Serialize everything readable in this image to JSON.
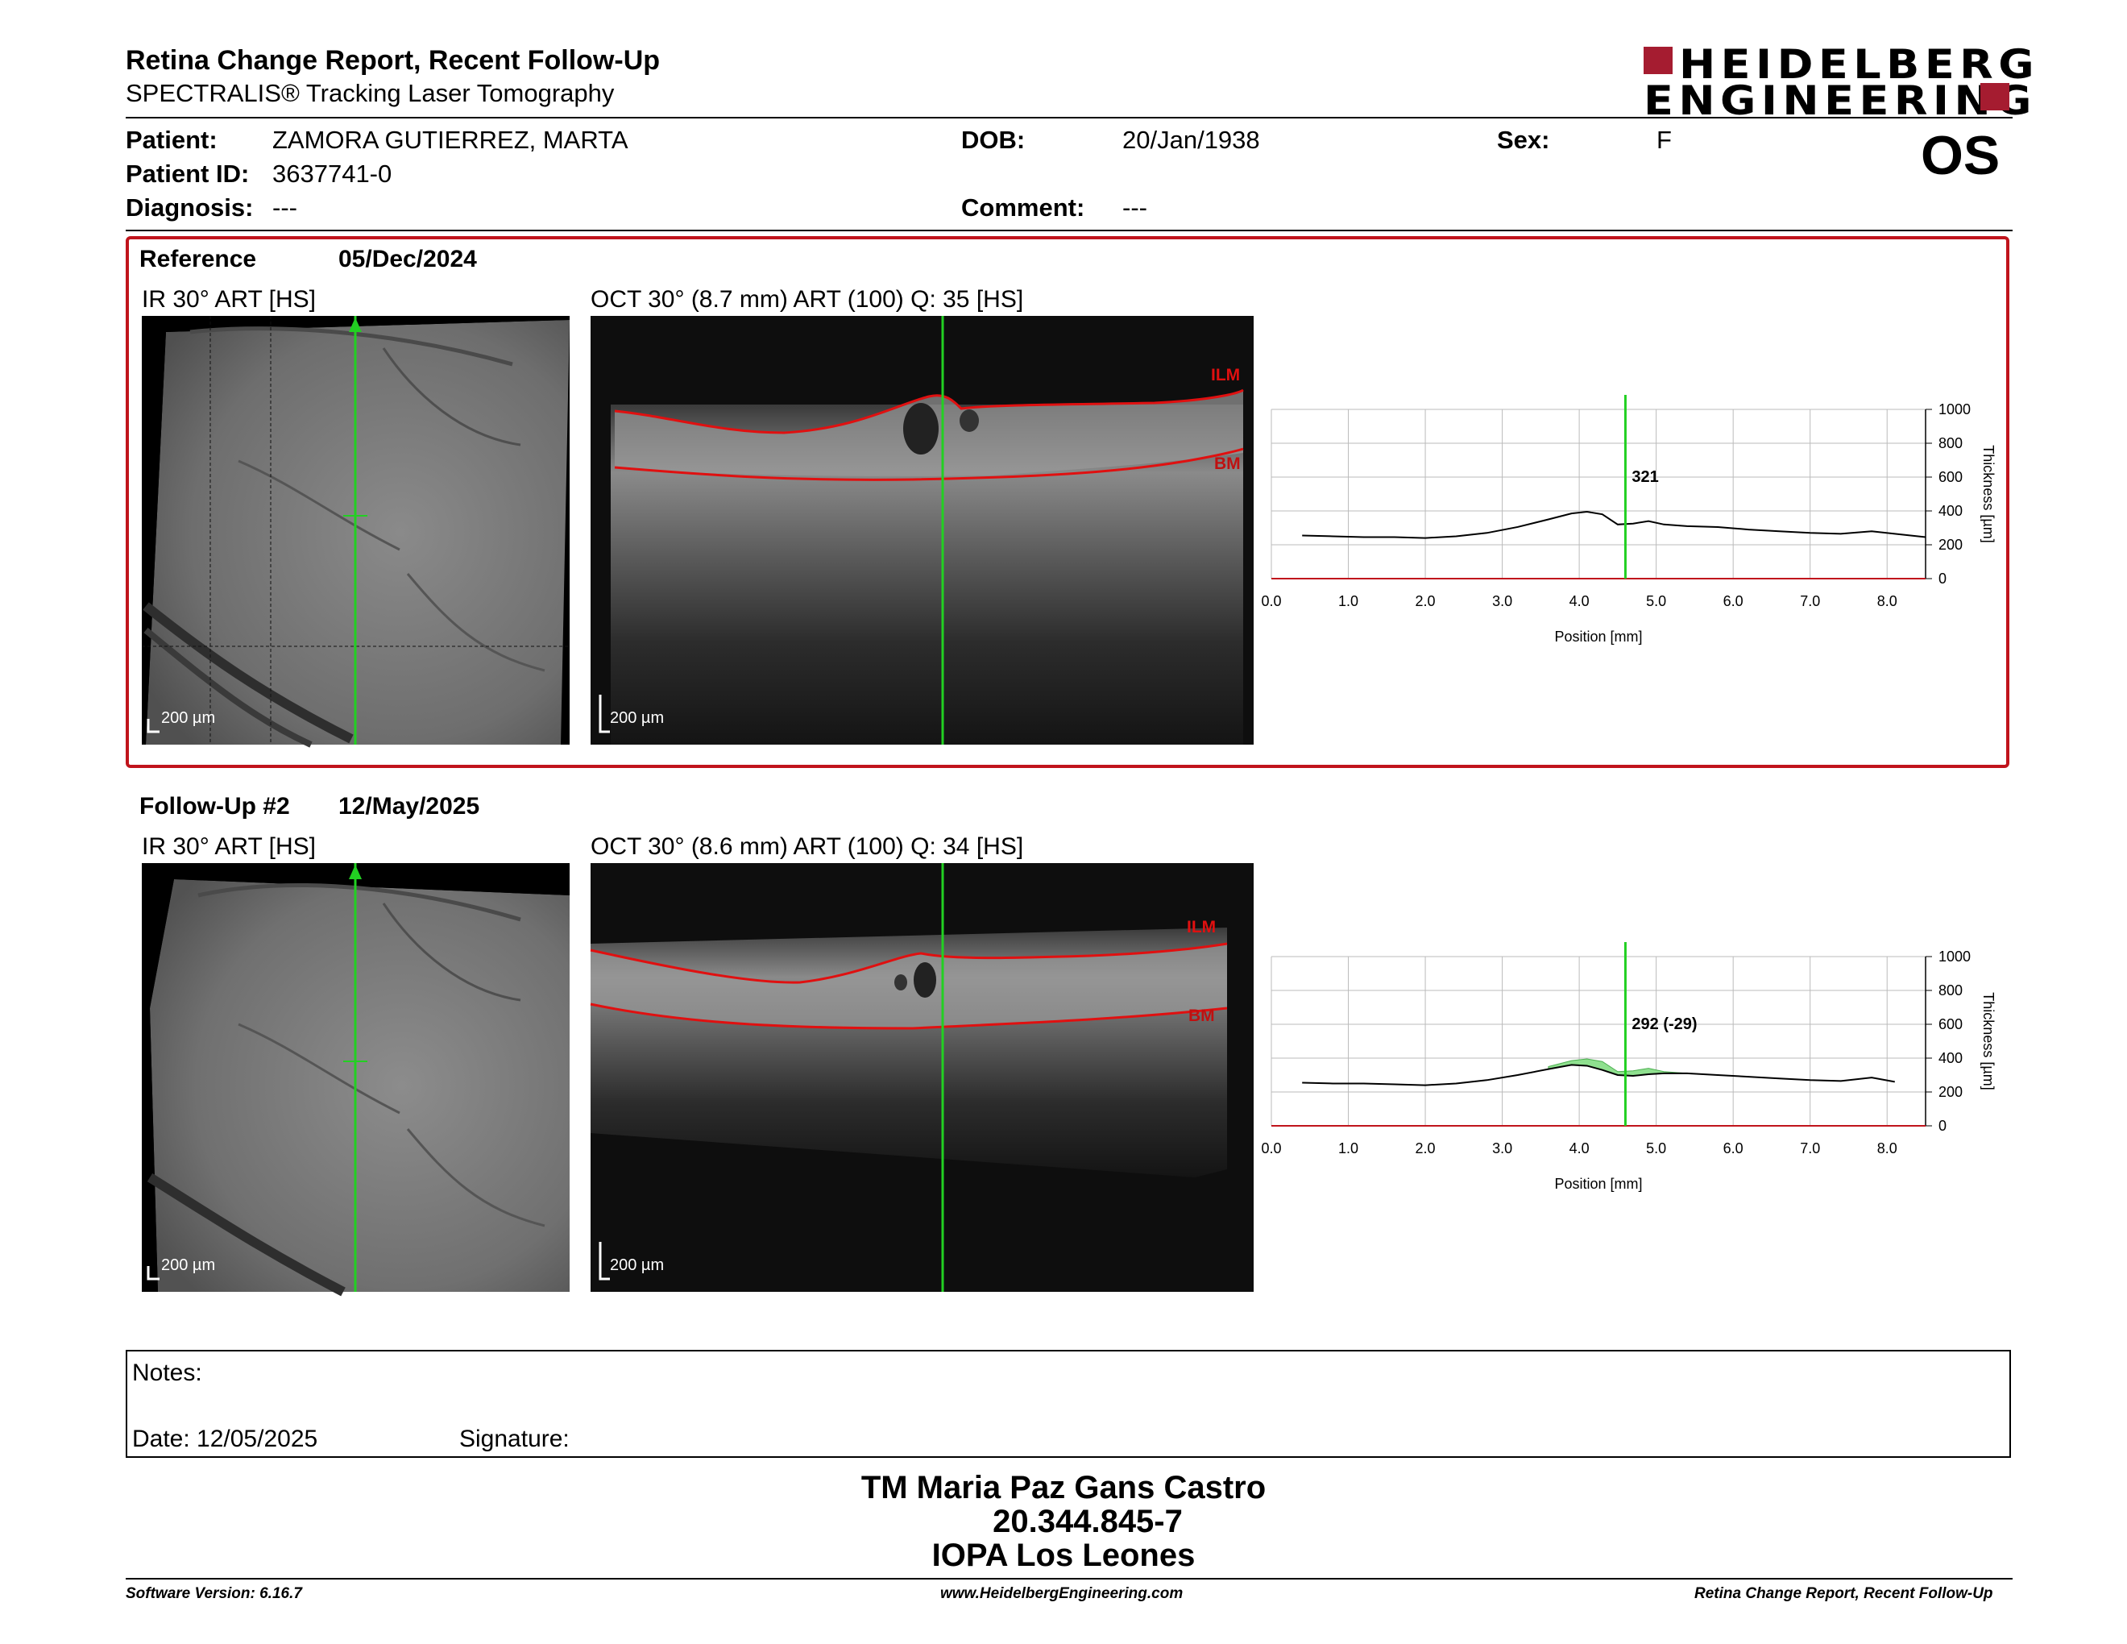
{
  "header": {
    "title": "Retina Change Report, Recent Follow-Up",
    "subtitle": "SPECTRALIS® Tracking Laser Tomography",
    "logo_line1": "HEIDELBERG",
    "logo_line2": "ENGINEERING",
    "eye": "OS"
  },
  "patient": {
    "name_label": "Patient:",
    "name": "ZAMORA GUTIERREZ, MARTA",
    "id_label": "Patient ID:",
    "id": "3637741-0",
    "diagnosis_label": "Diagnosis:",
    "diagnosis": "---",
    "dob_label": "DOB:",
    "dob": "20/Jan/1938",
    "comment_label": "Comment:",
    "comment": "---",
    "sex_label": "Sex:",
    "sex": "F"
  },
  "reference": {
    "label": "Reference",
    "date": "05/Dec/2024",
    "ir_label": "IR 30° ART [HS]",
    "oct_label": "OCT 30° (8.7 mm) ART (100) Q: 35 [HS]",
    "ir_scale": "200 µm",
    "oct_scale": "200 µm",
    "ilm": "ILM",
    "bm": "BM",
    "value_label": "321"
  },
  "followup": {
    "label": "Follow-Up #2",
    "date": "12/May/2025",
    "ir_label": "IR 30° ART [HS]",
    "oct_label": "OCT 30° (8.6 mm) ART (100) Q: 34 [HS]",
    "ir_scale": "200 µm",
    "oct_scale": "200 µm",
    "ilm": "ILM",
    "bm": "BM",
    "value_label": "292 (-29)"
  },
  "chart_data": [
    {
      "type": "line",
      "xlabel": "Position [mm]",
      "ylabel": "Thickness [µm]",
      "xlim": [
        0.0,
        8.5
      ],
      "ylim": [
        0,
        1000
      ],
      "xticks": [
        "0.0",
        "1.0",
        "2.0",
        "3.0",
        "4.0",
        "5.0",
        "6.0",
        "7.0",
        "8.0"
      ],
      "yticks": [
        "0",
        "200",
        "400",
        "600",
        "800",
        "1000"
      ],
      "grid": true,
      "marker_x": 4.6,
      "marker_label": "321",
      "series": [
        {
          "x": [
            0.4,
            0.8,
            1.2,
            1.6,
            2.0,
            2.4,
            2.8,
            3.2,
            3.6,
            3.9,
            4.1,
            4.3,
            4.5,
            4.7,
            4.9,
            5.1,
            5.4,
            5.8,
            6.2,
            6.6,
            7.0,
            7.4,
            7.8,
            8.1,
            8.5
          ],
          "y": [
            255,
            250,
            245,
            245,
            240,
            250,
            270,
            305,
            350,
            385,
            395,
            380,
            320,
            325,
            340,
            320,
            310,
            305,
            290,
            280,
            270,
            265,
            280,
            265,
            245
          ]
        }
      ]
    },
    {
      "type": "line",
      "xlabel": "Position [mm]",
      "ylabel": "Thickness [µm]",
      "xlim": [
        0.0,
        8.5
      ],
      "ylim": [
        0,
        1000
      ],
      "xticks": [
        "0.0",
        "1.0",
        "2.0",
        "3.0",
        "4.0",
        "5.0",
        "6.0",
        "7.0",
        "8.0"
      ],
      "yticks": [
        "0",
        "200",
        "400",
        "600",
        "800",
        "1000"
      ],
      "grid": true,
      "marker_x": 4.6,
      "marker_label": "292 (-29)",
      "series": [
        {
          "x": [
            0.4,
            0.8,
            1.2,
            1.6,
            2.0,
            2.4,
            2.8,
            3.2,
            3.6,
            3.9,
            4.1,
            4.3,
            4.5,
            4.7,
            4.9,
            5.1,
            5.4,
            5.8,
            6.2,
            6.6,
            7.0,
            7.4,
            7.8,
            8.1
          ],
          "y": [
            255,
            250,
            250,
            245,
            240,
            250,
            270,
            300,
            335,
            360,
            355,
            330,
            300,
            295,
            305,
            310,
            310,
            300,
            290,
            280,
            270,
            265,
            285,
            260
          ]
        },
        {
          "x": [
            3.6,
            3.9,
            4.1,
            4.3,
            4.5,
            4.7,
            4.9,
            5.1,
            5.4
          ],
          "y": [
            350,
            385,
            395,
            380,
            320,
            325,
            340,
            320,
            310
          ]
        }
      ]
    }
  ],
  "notes": {
    "label": "Notes:",
    "date": "Date: 12/05/2025",
    "signature": "Signature:"
  },
  "signer": {
    "name": "TM Maria Paz Gans Castro",
    "id": "20.344.845-7",
    "org": "IOPA Los Leones"
  },
  "footer": {
    "version": "Software Version: 6.16.7",
    "url": "www.HeidelbergEngineering.com",
    "report": "Retina Change Report, Recent Follow-Up"
  },
  "colors": {
    "accent_red": "#c0141c",
    "logo_red": "#a51c30",
    "marker_green": "#22d022",
    "diff_fill": "#8fe08f"
  }
}
